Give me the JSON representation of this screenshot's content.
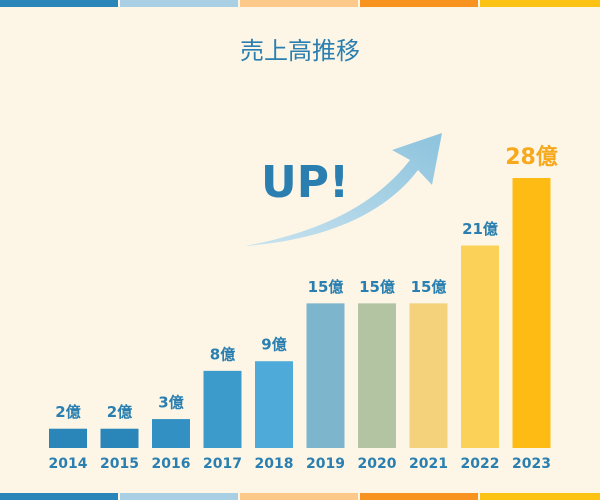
{
  "chart_data": {
    "type": "bar",
    "title": "売上高推移",
    "annotation": "UP!",
    "categories": [
      "2014",
      "2015",
      "2016",
      "2017",
      "2018",
      "2019",
      "2020",
      "2021",
      "2022",
      "2023"
    ],
    "values": [
      2,
      2,
      3,
      8,
      9,
      15,
      15,
      15,
      21,
      28
    ],
    "value_labels": [
      "2億",
      "2億",
      "3億",
      "8億",
      "9億",
      "15億",
      "15億",
      "15億",
      "21億",
      "28億"
    ],
    "colors": [
      "#2a86b8",
      "#2a86b8",
      "#3390c2",
      "#3c9bcb",
      "#4eaad8",
      "#7db6cc",
      "#b2c4a2",
      "#f4d27c",
      "#fcd158",
      "#fdbb14"
    ],
    "value_label_colors": [
      "#2a7fb0",
      "#2a7fb0",
      "#2a7fb0",
      "#2a7fb0",
      "#2a7fb0",
      "#2a7fb0",
      "#2a7fb0",
      "#2a7fb0",
      "#2a7fb0",
      "#f7a81b"
    ]
  }
}
